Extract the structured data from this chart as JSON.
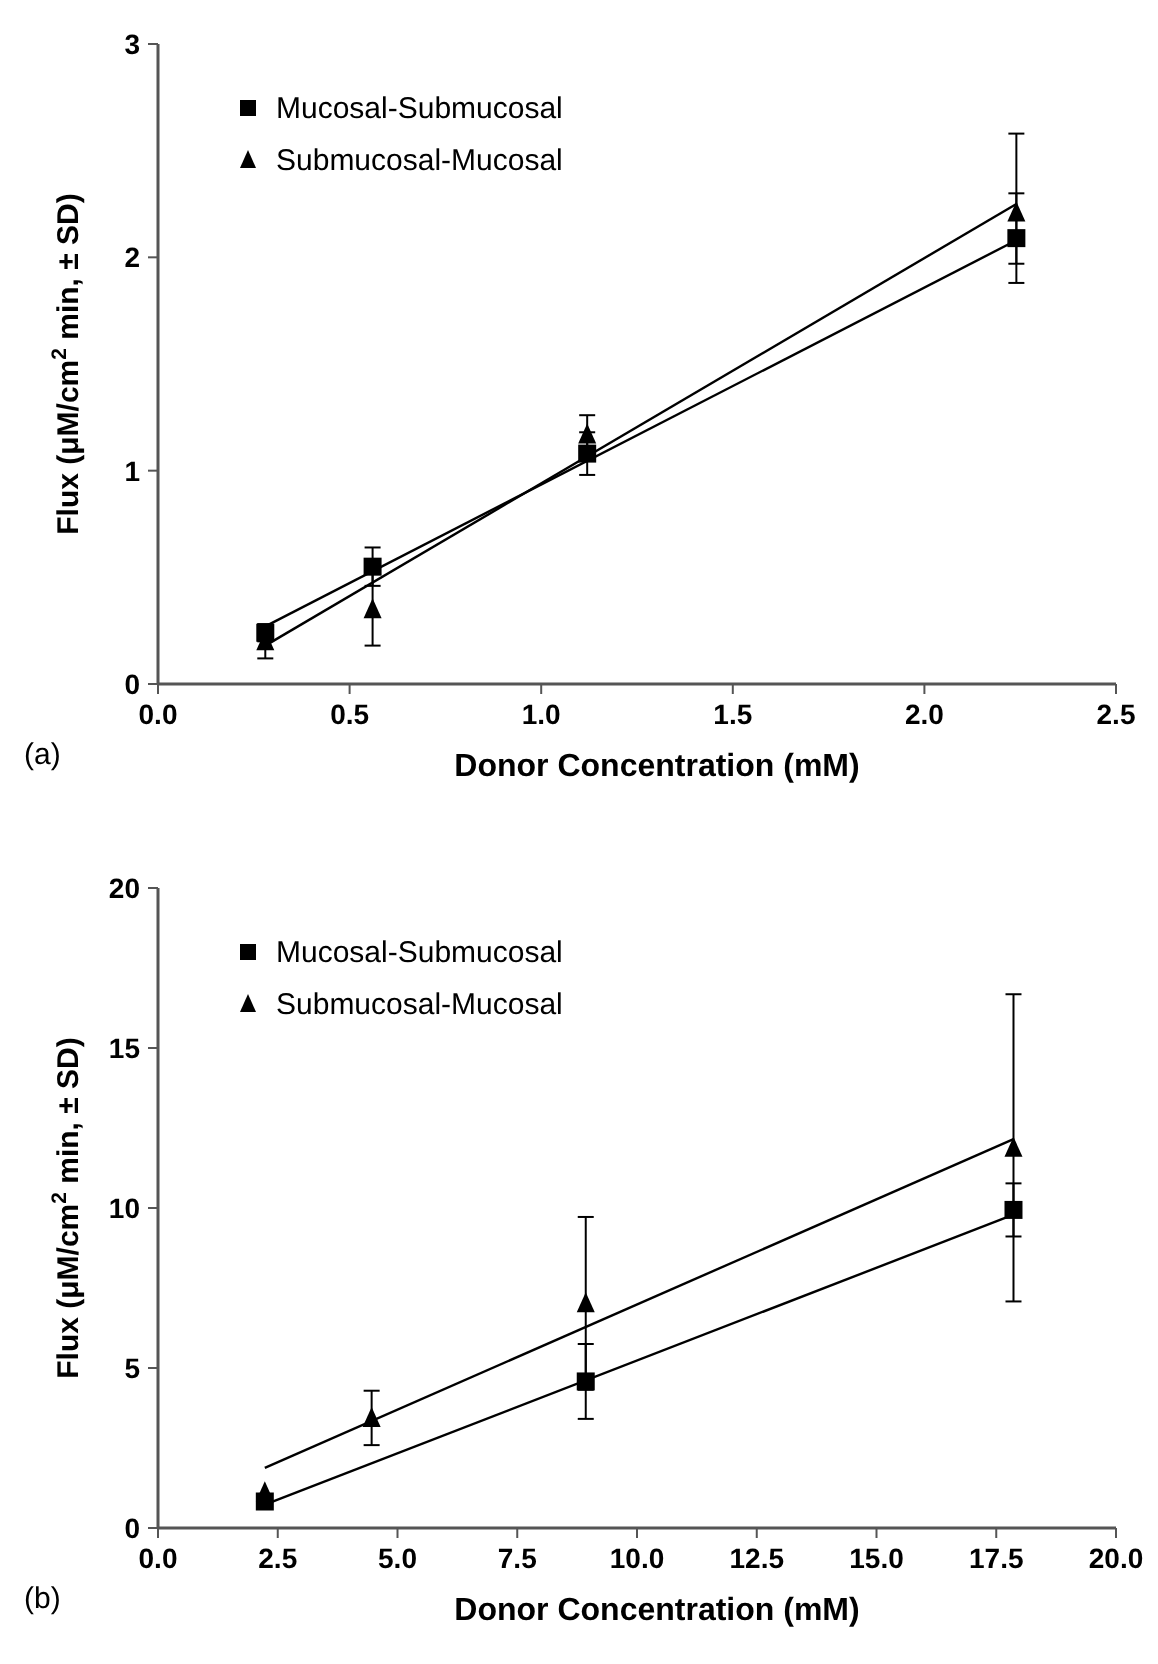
{
  "chart_data": [
    {
      "type": "scatter",
      "xlabel": "Donor Concentration (mM)",
      "ylabel": "Flux (μM/cm$^{2}$ min, ± SD)",
      "annotations": [
        "(a)"
      ],
      "legend": "top left",
      "grid": false,
      "xlim": [
        0,
        2.5
      ],
      "xticks": [
        {
          "value": 0,
          "label": "0.0"
        },
        {
          "value": 0.5,
          "label": "0.5"
        },
        {
          "value": 1,
          "label": "1.0"
        },
        {
          "value": 1.5,
          "label": "1.5"
        },
        {
          "value": 2,
          "label": "2.0"
        },
        {
          "value": 2.5,
          "label": "2.5"
        }
      ],
      "ylim": [
        0,
        3
      ],
      "yticks": [
        0,
        1,
        2,
        3
      ],
      "series": [
        {
          "name": "Mucosal-Submucosal",
          "color": "#000000",
          "marker": "square",
          "x": [
            0.28,
            0.56,
            1.12,
            2.24
          ],
          "values": [
            0.24,
            0.55,
            1.08,
            2.09
          ],
          "errors": [
            0.04,
            0.09,
            0.1,
            0.21
          ]
        },
        {
          "name": "Submucosal-Mucosal",
          "color": "#000000",
          "marker": "triangle",
          "x": [
            0.28,
            0.56,
            1.12,
            2.24
          ],
          "values": [
            0.2,
            0.35,
            1.17,
            2.21
          ],
          "errors": [
            0.08,
            0.17,
            0.09,
            [
              1.97,
              2.58
            ]
          ]
        },
        {
          "type": "line",
          "color": "#000000",
          "marker": "none",
          "line_style": "solid",
          "x": [
            0.28,
            2.24
          ],
          "values": [
            0.27,
            2.08
          ]
        },
        {
          "type": "line",
          "color": "#000000",
          "marker": "none",
          "line_style": "solid",
          "x": [
            0.28,
            2.24
          ],
          "values": [
            0.18,
            2.25
          ]
        }
      ]
    },
    {
      "type": "scatter",
      "xlabel": "Donor Concentration (mM)",
      "ylabel": "Flux (μM/cm$^{2}$ min, ± SD)",
      "annotations": [
        "(b)"
      ],
      "legend": "top left",
      "grid": false,
      "xlim": [
        0,
        20
      ],
      "xticks": [
        {
          "value": 0,
          "label": "0.0"
        },
        {
          "value": 2.5,
          "label": "2.5"
        },
        {
          "value": 5,
          "label": "5.0"
        },
        {
          "value": 7.5,
          "label": "7.5"
        },
        {
          "value": 10,
          "label": "10.0"
        },
        {
          "value": 12.5,
          "label": "12.5"
        },
        {
          "value": 15,
          "label": "15.0"
        },
        {
          "value": 17.5,
          "label": "17.5"
        },
        {
          "value": 20,
          "label": "20.0"
        }
      ],
      "ylim": [
        0,
        20
      ],
      "yticks": [
        0,
        5,
        10,
        15,
        20
      ],
      "series": [
        {
          "name": "Mucosal-Submucosal",
          "color": "#000000",
          "marker": "square",
          "x": [
            2.23,
            8.93,
            17.86
          ],
          "values": [
            0.83,
            4.58,
            9.94
          ],
          "errors": [
            null,
            1.17,
            0.83
          ]
        },
        {
          "name": "Submucosal-Mucosal",
          "color": "#000000",
          "marker": "triangle",
          "x": [
            2.23,
            4.46,
            8.93,
            17.86
          ],
          "values": [
            1.12,
            3.44,
            7.02,
            11.88
          ],
          "errors": [
            null,
            0.85,
            2.7,
            4.8
          ]
        },
        {
          "type": "line",
          "color": "#000000",
          "marker": "none",
          "line_style": "solid",
          "x": [
            2.23,
            17.86
          ],
          "values": [
            0.73,
            9.79
          ]
        },
        {
          "type": "line",
          "color": "#000000",
          "marker": "none",
          "line_style": "solid",
          "x": [
            2.23,
            17.86
          ],
          "values": [
            1.88,
            12.15
          ]
        }
      ]
    }
  ]
}
